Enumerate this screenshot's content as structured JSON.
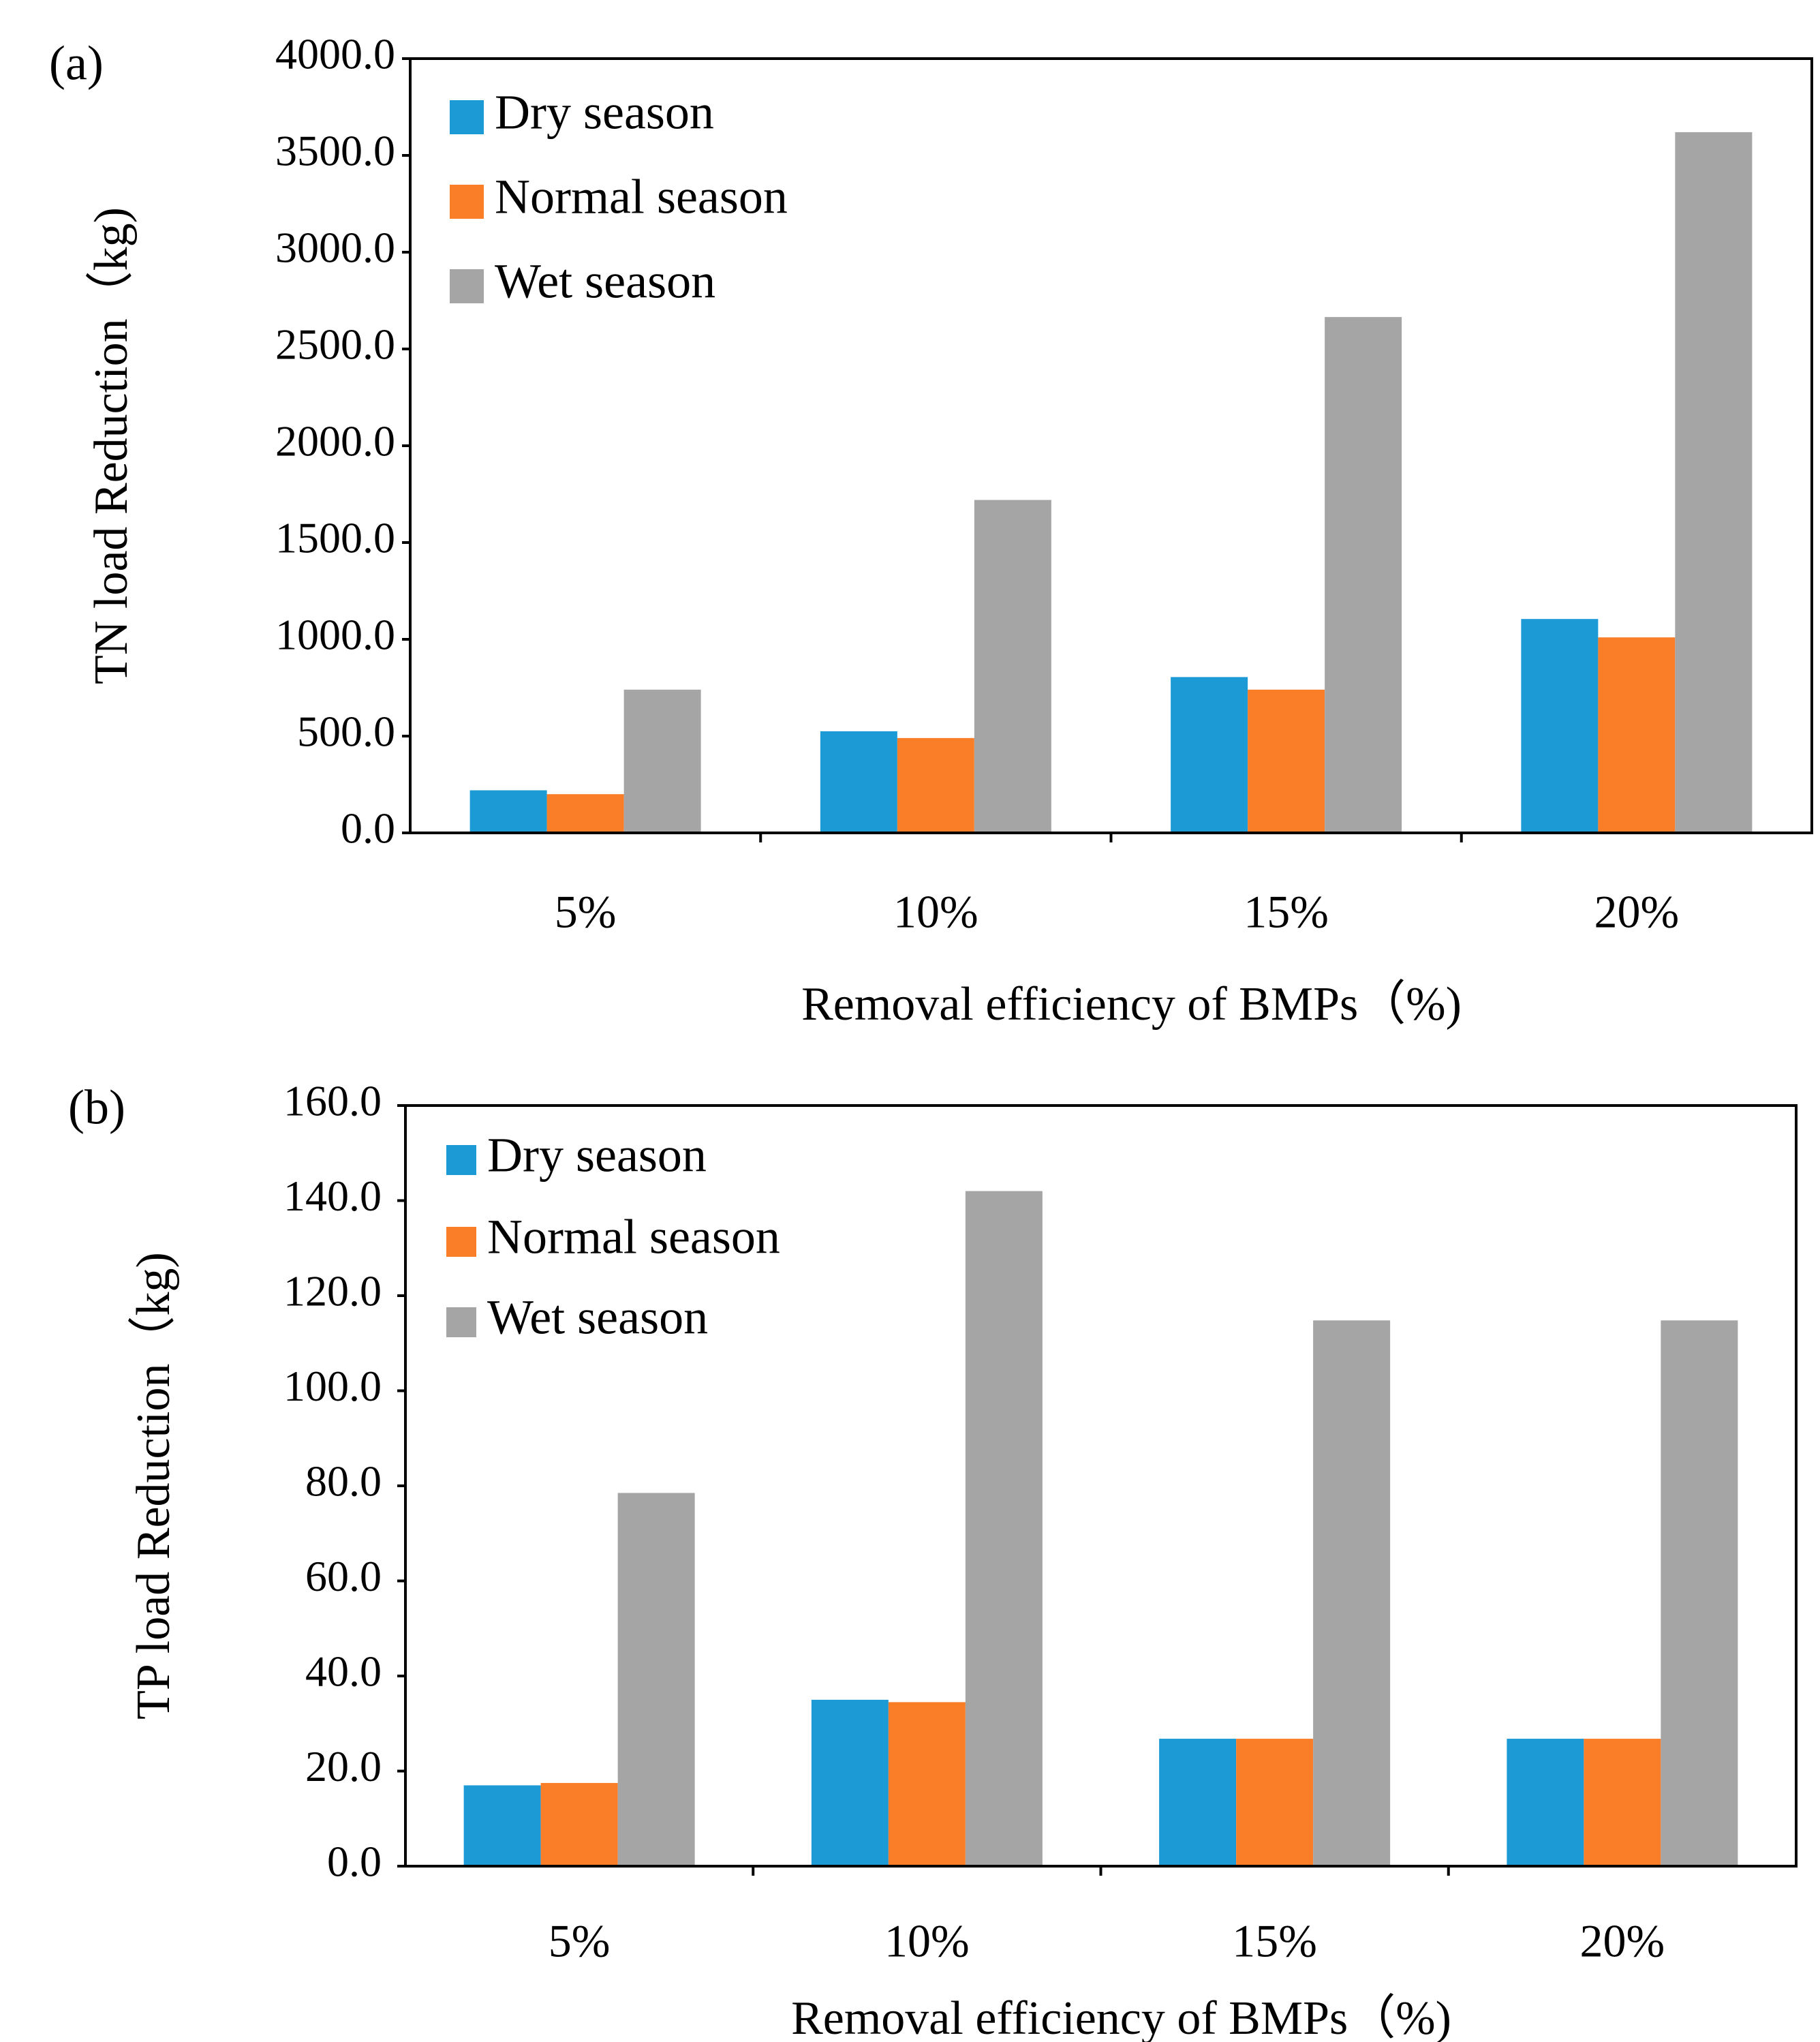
{
  "colors": {
    "Dry season": "#1b9ad6",
    "Normal season": "#fa7d28",
    "Wet season": "#a5a5a5"
  },
  "chart_data": [
    {
      "type": "bar",
      "panel_label": "(a)",
      "categories": [
        "5%",
        "10%",
        "15%",
        "20%"
      ],
      "series": [
        {
          "name": "Dry season",
          "values": [
            220,
            525,
            805,
            1105
          ]
        },
        {
          "name": "Normal season",
          "values": [
            200,
            490,
            740,
            1010
          ]
        },
        {
          "name": "Wet season",
          "values": [
            740,
            1720,
            2665,
            3620
          ]
        }
      ],
      "xlabel": "Removal efficiency of BMPs（%)",
      "ylabel": "TN load Reduction（kg)",
      "ylim": [
        0,
        4000
      ],
      "yticks": [
        "0.0",
        "500.0",
        "1000.0",
        "1500.0",
        "2000.0",
        "2500.0",
        "3000.0",
        "3500.0",
        "4000.0"
      ],
      "legend_position": "top-left",
      "grid": false
    },
    {
      "type": "bar",
      "panel_label": "(b)",
      "categories": [
        "5%",
        "10%",
        "15%",
        "20%"
      ],
      "series": [
        {
          "name": "Dry season",
          "values": [
            17.0,
            35.0,
            26.8,
            26.8
          ]
        },
        {
          "name": "Normal season",
          "values": [
            17.5,
            34.5,
            26.8,
            26.8
          ]
        },
        {
          "name": "Wet season",
          "values": [
            78.5,
            142.0,
            114.8,
            114.8
          ]
        }
      ],
      "xlabel": "Removal efficiency of BMPs（%)",
      "ylabel": "TP load Reduction（kg)",
      "ylim": [
        0,
        160
      ],
      "yticks": [
        "0.0",
        "20.0",
        "40.0",
        "60.0",
        "80.0",
        "100.0",
        "120.0",
        "140.0",
        "160.0"
      ],
      "legend_position": "top-left",
      "grid": false
    }
  ]
}
